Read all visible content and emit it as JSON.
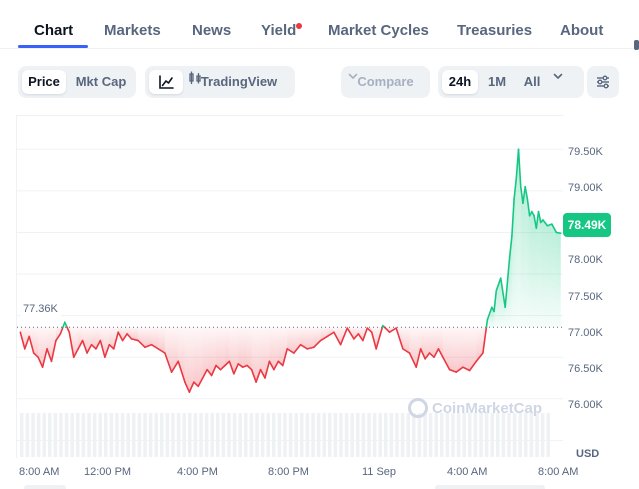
{
  "tabs": [
    {
      "label": "Chart",
      "active": true
    },
    {
      "label": "Markets"
    },
    {
      "label": "News"
    },
    {
      "label": "Yield",
      "badge": "red-dot"
    },
    {
      "label": "Market Cycles"
    },
    {
      "label": "Treasuries"
    },
    {
      "label": "About"
    }
  ],
  "toolbar": {
    "view_toggle": {
      "price": "Price",
      "mkt_cap": "Mkt Cap",
      "selected": "Price"
    },
    "chart_style": {
      "line_icon": "line-chart-icon",
      "tradingview_icon": "candlestick-icon",
      "tradingview_label": "TradingView"
    },
    "compare_label": "Compare",
    "ranges": {
      "r24h": "24h",
      "r1m": "1M",
      "all": "All",
      "selected": "24h"
    },
    "menu_icon": "chevron-down-icon",
    "settings_icon": "sliders-icon"
  },
  "chart_data": {
    "type": "line",
    "currency": "USD",
    "current_price_label": "78.49K",
    "current_price": 78490,
    "reference_label": "77.36K",
    "reference_price": 77360,
    "ylim": [
      75800,
      79900
    ],
    "yticks": [
      "79.50K",
      "79.00K",
      "78.50K",
      "78.00K",
      "77.50K",
      "77.00K",
      "76.50K",
      "76.00K"
    ],
    "ytick_values": [
      79500,
      79000,
      78500,
      78000,
      77500,
      77000,
      76500,
      76000
    ],
    "xticks": [
      "8:00 AM",
      "12:00 PM",
      "4:00 PM",
      "8:00 PM",
      "11 Sep",
      "4:00 AM",
      "8:00 AM"
    ],
    "xtick_hours": [
      0,
      4,
      8,
      12,
      16,
      20,
      24
    ],
    "x_span_hours": [
      -0.15,
      24.4
    ],
    "grid": true,
    "up_color": "#16c784",
    "down_color": "#ea3943",
    "series": [
      {
        "hours": [
          0,
          0.2,
          0.4,
          0.6,
          0.8,
          1.0,
          1.2,
          1.4,
          1.6,
          1.8,
          2.0,
          2.2,
          2.4,
          2.6,
          2.8,
          3.0,
          3.2,
          3.4,
          3.6,
          3.8,
          4.0,
          4.2,
          4.4,
          4.6,
          4.8,
          5.0,
          5.3,
          5.6,
          5.9,
          6.2,
          6.5,
          6.8,
          7.1,
          7.4,
          7.6,
          7.8,
          8.0,
          8.2,
          8.4,
          8.6,
          8.8,
          9.0,
          9.2,
          9.4,
          9.6,
          9.8,
          10.0,
          10.2,
          10.4,
          10.6,
          10.8,
          11.0,
          11.2,
          11.4,
          11.6,
          11.8,
          12.0,
          12.3,
          12.6,
          12.9,
          13.2,
          13.5,
          13.8,
          14.1,
          14.4,
          14.7,
          15.0,
          15.2,
          15.4,
          15.6,
          15.8,
          16.0,
          16.3,
          16.6,
          16.9,
          17.2,
          17.5,
          17.8,
          18.0,
          18.2,
          18.4,
          18.6,
          18.8,
          19.0,
          19.3,
          19.6,
          19.9,
          20.2,
          20.5,
          20.8,
          21.0,
          21.2,
          21.3,
          21.4,
          21.6,
          21.8,
          22.0,
          22.1,
          22.2,
          22.3,
          22.4,
          22.5,
          22.6,
          22.7,
          22.8,
          22.9,
          23.0,
          23.1,
          23.2,
          23.3,
          23.4,
          23.5,
          23.7,
          23.9,
          24.1,
          24.3
        ],
        "prices": [
          77.3,
          77.1,
          77.25,
          77.05,
          77.0,
          76.88,
          77.1,
          76.95,
          77.2,
          77.28,
          77.42,
          77.3,
          77.0,
          77.1,
          77.2,
          77.05,
          77.15,
          77.1,
          77.2,
          77.0,
          77.15,
          77.1,
          77.3,
          77.2,
          77.28,
          77.22,
          77.2,
          77.12,
          77.15,
          77.1,
          77.05,
          76.82,
          76.95,
          76.7,
          76.58,
          76.7,
          76.65,
          76.75,
          76.85,
          76.78,
          76.9,
          76.85,
          76.9,
          76.95,
          76.8,
          76.92,
          76.88,
          76.9,
          76.85,
          76.7,
          76.85,
          76.75,
          76.95,
          76.85,
          76.95,
          76.9,
          77.1,
          77.05,
          77.15,
          77.1,
          77.12,
          77.2,
          77.25,
          77.3,
          77.15,
          77.35,
          77.22,
          77.28,
          77.2,
          77.35,
          77.3,
          77.1,
          77.38,
          77.3,
          77.35,
          77.1,
          77.05,
          76.88,
          77.1,
          76.98,
          77.05,
          77.0,
          77.1,
          77.0,
          76.85,
          76.82,
          76.88,
          76.84,
          76.95,
          77.05,
          77.45,
          77.6,
          77.55,
          77.8,
          77.95,
          77.6,
          78.2,
          78.45,
          78.9,
          79.15,
          79.5,
          79.05,
          78.85,
          79.05,
          78.9,
          78.7,
          78.75,
          78.7,
          78.55,
          78.75,
          78.62,
          78.65,
          78.58,
          78.6,
          78.5,
          78.49
        ]
      }
    ]
  },
  "branding": {
    "watermark": "CoinMarketCap",
    "watermark_icon": "coinmarketcap-logo-icon"
  },
  "axis": {
    "currency_label": "USD"
  }
}
